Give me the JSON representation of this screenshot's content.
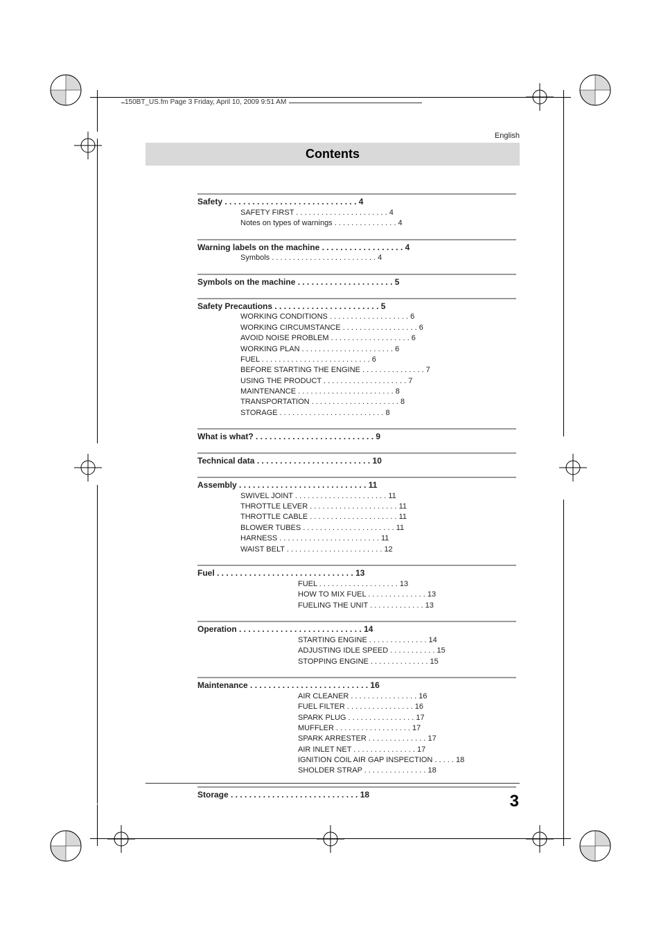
{
  "header_text": "150BT_US.fm  Page 3  Friday, April 10, 2009  9:51 AM",
  "lang_label": "English",
  "title": "Contents",
  "page_number": "3",
  "toc": [
    {
      "title": "Safety",
      "page": "4",
      "subs": [
        {
          "label": "SAFETY FIRST",
          "page": "4"
        },
        {
          "label": "Notes on types of warnings",
          "page": "4"
        }
      ]
    },
    {
      "title": "Warning labels on the machine",
      "page": "4",
      "subs": [
        {
          "label": "Symbols",
          "page": "4"
        }
      ]
    },
    {
      "title": "Symbols on the machine",
      "page": "5",
      "subs": []
    },
    {
      "title": "Safety Precautions",
      "page": "5",
      "subs": [
        {
          "label": "WORKING CONDITIONS",
          "page": "6"
        },
        {
          "label": "WORKING CIRCUMSTANCE",
          "page": "6"
        },
        {
          "label": "AVOID NOISE PROBLEM",
          "page": "6"
        },
        {
          "label": "WORKING PLAN",
          "page": "6"
        },
        {
          "label": "FUEL",
          "page": "6"
        },
        {
          "label": "BEFORE STARTING THE ENGINE",
          "page": "7"
        },
        {
          "label": "USING THE PRODUCT",
          "page": "7"
        },
        {
          "label": "MAINTENANCE",
          "page": "8"
        },
        {
          "label": "TRANSPORTATION",
          "page": "8"
        },
        {
          "label": "STORAGE",
          "page": "8"
        }
      ]
    },
    {
      "title": "What is what?",
      "page": "9",
      "subs": []
    },
    {
      "title": "Technical data",
      "page": "10",
      "subs": []
    },
    {
      "title": "Assembly",
      "page": "11",
      "subs": [
        {
          "label": "SWIVEL JOINT",
          "page": "11"
        },
        {
          "label": "THROTTLE LEVER",
          "page": "11"
        },
        {
          "label": "THROTTLE CABLE",
          "page": "11"
        },
        {
          "label": "BLOWER TUBES",
          "page": "11"
        },
        {
          "label": "HARNESS",
          "page": "11"
        },
        {
          "label": "WAIST BELT",
          "page": "12"
        }
      ]
    },
    {
      "title": "Fuel",
      "page": "13",
      "subs2": [
        {
          "label": "FUEL",
          "page": "13"
        },
        {
          "label": "HOW TO MIX FUEL",
          "page": "13"
        },
        {
          "label": "FUELING THE UNIT",
          "page": "13"
        }
      ]
    },
    {
      "title": "Operation",
      "page": "14",
      "subs2": [
        {
          "label": "STARTING ENGINE",
          "page": "14"
        },
        {
          "label": "ADJUSTING IDLE SPEED",
          "page": "15"
        },
        {
          "label": "STOPPING ENGINE",
          "page": "15"
        }
      ]
    },
    {
      "title": "Maintenance",
      "page": "16",
      "subs2": [
        {
          "label": "AIR CLEANER",
          "page": "16"
        },
        {
          "label": "FUEL FILTER",
          "page": "16"
        },
        {
          "label": "SPARK PLUG",
          "page": "17"
        },
        {
          "label": "MUFFLER",
          "page": "17"
        },
        {
          "label": "SPARK ARRESTER",
          "page": "17"
        },
        {
          "label": "AIR INLET NET",
          "page": "17"
        },
        {
          "label": "IGNITION COIL AIR GAP INSPECTION",
          "page": "18"
        },
        {
          "label": "SHOLDER STRAP",
          "page": "18"
        }
      ]
    },
    {
      "title": "Storage",
      "page": "18",
      "subs": []
    }
  ],
  "colors": {
    "title_bg": "#d9d9d9",
    "section_rule": "#999999",
    "text": "#222222"
  }
}
